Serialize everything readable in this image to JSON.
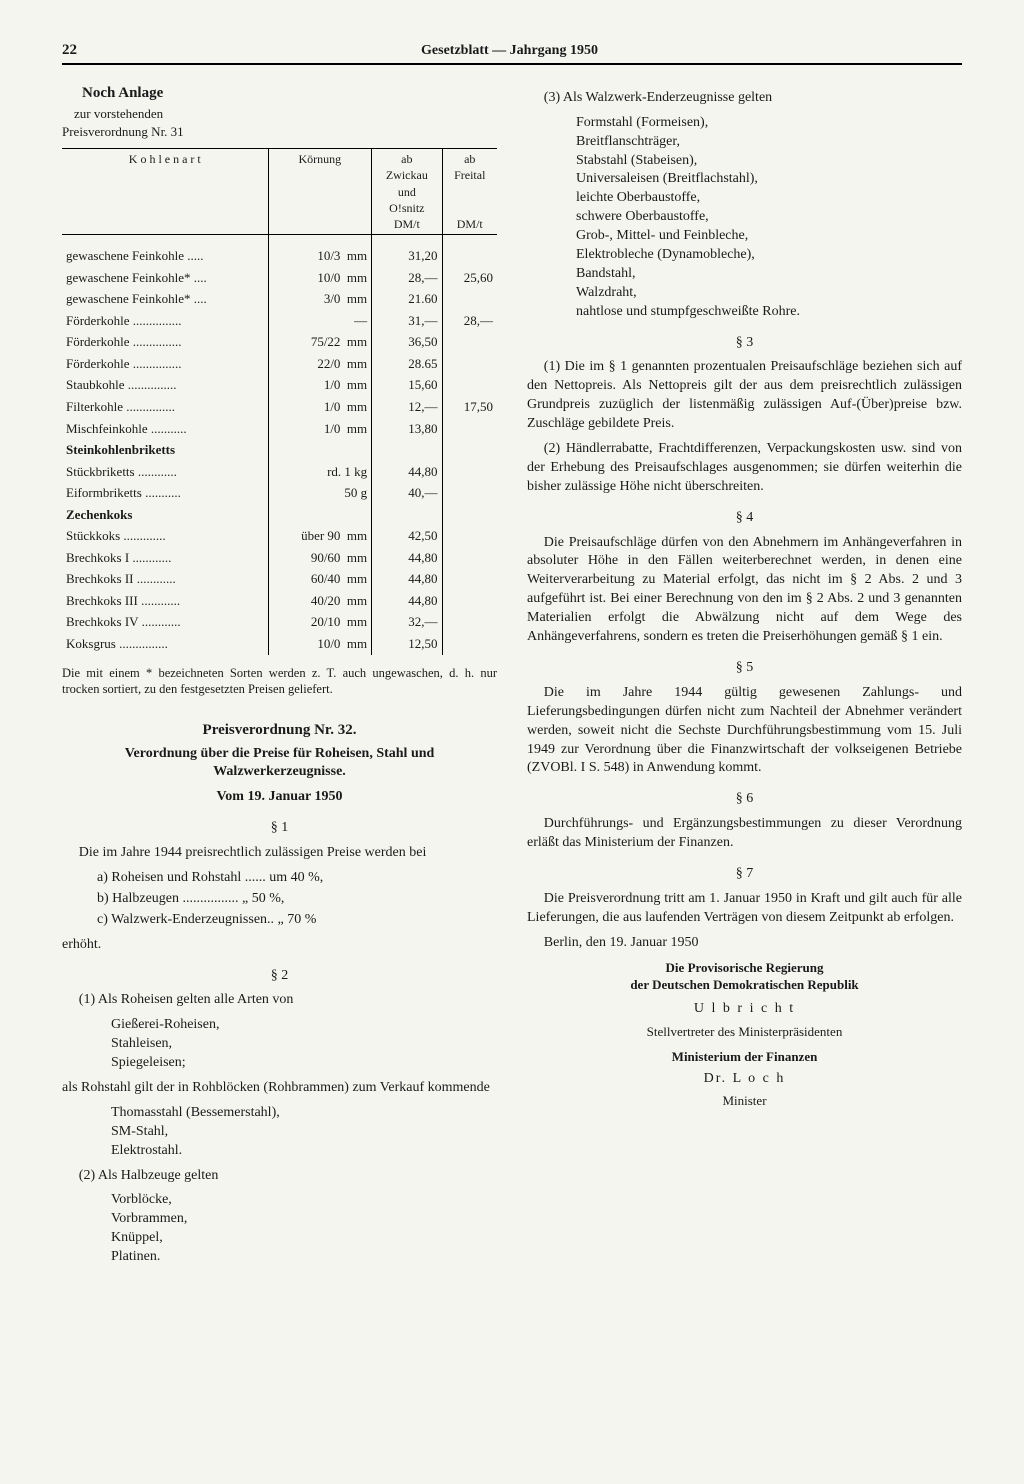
{
  "page_number": "22",
  "header": "Gesetzblatt — Jahrgang 1950",
  "anlage": {
    "title": "Noch Anlage",
    "sub1": "zur vorstehenden",
    "sub2": "Preisverordnung Nr. 31"
  },
  "table": {
    "head": {
      "c1": "K o h l e n a r t",
      "c2": "Körnung",
      "c3a": "ab",
      "c3b": "Zwickau",
      "c3c": "und",
      "c3d": "O!snitz",
      "c3e": "DM/t",
      "c4a": "ab",
      "c4b": "Freital",
      "c4e": "DM/t"
    },
    "rows": [
      {
        "name": "gewaschene Feinkohle .....",
        "korn": "10/3",
        "unit": "mm",
        "p1": "31,20",
        "p2": ""
      },
      {
        "name": "gewaschene Feinkohle* ....",
        "korn": "10/0",
        "unit": "mm",
        "p1": "28,—",
        "p2": "25,60"
      },
      {
        "name": "gewaschene Feinkohle* ....",
        "korn": "3/0",
        "unit": "mm",
        "p1": "21.60",
        "p2": ""
      },
      {
        "name": "Förderkohle ...............",
        "korn": "—",
        "unit": "",
        "p1": "31,—",
        "p2": "28,—"
      },
      {
        "name": "Förderkohle ...............",
        "korn": "75/22",
        "unit": "mm",
        "p1": "36,50",
        "p2": ""
      },
      {
        "name": "Förderkohle ...............",
        "korn": "22/0",
        "unit": "mm",
        "p1": "28.65",
        "p2": ""
      },
      {
        "name": "Staubkohle ...............",
        "korn": "1/0",
        "unit": "mm",
        "p1": "15,60",
        "p2": ""
      },
      {
        "name": "Filterkohle ...............",
        "korn": "1/0",
        "unit": "mm",
        "p1": "12,—",
        "p2": "17,50"
      },
      {
        "name": "Mischfeinkohle ...........",
        "korn": "1/0",
        "unit": "mm",
        "p1": "13,80",
        "p2": ""
      }
    ],
    "sub1": "Steinkohlenbriketts",
    "rows2": [
      {
        "name": "Stückbriketts ............",
        "korn": "rd. 1 kg",
        "unit": "",
        "p1": "44,80",
        "p2": ""
      },
      {
        "name": "Eiformbriketts ...........",
        "korn": "50 g",
        "unit": "",
        "p1": "40,—",
        "p2": ""
      }
    ],
    "sub2": "Zechenkoks",
    "rows3": [
      {
        "name": "Stückkoks .............",
        "korn": "über 90",
        "unit": "mm",
        "p1": "42,50",
        "p2": ""
      },
      {
        "name": "Brechkoks I ............",
        "korn": "90/60",
        "unit": "mm",
        "p1": "44,80",
        "p2": ""
      },
      {
        "name": "Brechkoks II ............",
        "korn": "60/40",
        "unit": "mm",
        "p1": "44,80",
        "p2": ""
      },
      {
        "name": "Brechkoks III ............",
        "korn": "40/20",
        "unit": "mm",
        "p1": "44,80",
        "p2": ""
      },
      {
        "name": "Brechkoks IV ............",
        "korn": "20/10",
        "unit": "mm",
        "p1": "32,—",
        "p2": ""
      },
      {
        "name": "Koksgrus ...............",
        "korn": "10/0",
        "unit": "mm",
        "p1": "12,50",
        "p2": ""
      }
    ],
    "footnote": "Die mit einem * bezeichneten Sorten werden z. T. auch ungewaschen, d. h. nur trocken sortiert, zu den festgesetzten Preisen geliefert."
  },
  "ord": {
    "title": "Preisverordnung Nr. 32.",
    "sub": "Verordnung über die Preise für Roheisen, Stahl und Walzwerkerzeugnisse.",
    "date": "Vom 19. Januar 1950",
    "s1": "§ 1",
    "p1": "Die im Jahre 1944 preisrechtlich zulässigen Preise werden bei",
    "p1a": "a) Roheisen und Rohstahl ...... um 40 %,",
    "p1b": "b) Halbzeugen ................ „ 50 %,",
    "p1c": "c) Walzwerk-Enderzeugnissen.. „ 70 %",
    "p1e": "erhöht.",
    "s2": "§ 2",
    "p2_1": "(1) Als Roheisen gelten alle Arten von",
    "p2_1a": "Gießerei-Roheisen,",
    "p2_1b": "Stahleisen,",
    "p2_1c": "Spiegeleisen;",
    "p2_r": "als Rohstahl gilt der in Rohblöcken (Rohbrammen) zum Verkauf kommende",
    "p2_ra": "Thomasstahl (Bessemerstahl),",
    "p2_rb": "SM-Stahl,",
    "p2_rc": "Elektrostahl.",
    "p2_2": "(2) Als Halbzeuge gelten",
    "p2_2a": "Vorblöcke,",
    "p2_2b": "Vorbrammen,",
    "p2_2c": "Knüppel,",
    "p2_2d": "Platinen."
  },
  "col2": {
    "p3": "(3) Als Walzwerk-Enderzeugnisse gelten",
    "p3_list": [
      "Formstahl (Formeisen),",
      "Breitflanschträger,",
      "Stabstahl (Stabeisen),",
      "Universaleisen (Breitflachstahl),",
      "leichte Oberbaustoffe,",
      "schwere Oberbaustoffe,",
      "Grob-, Mittel- und Feinbleche,",
      "Elektrobleche (Dynamobleche),",
      "Bandstahl,",
      "Walzdraht,",
      "nahtlose und stumpfgeschweißte Rohre."
    ],
    "s3": "§ 3",
    "p3_1": "(1) Die im § 1 genannten prozentualen Preisaufschläge beziehen sich auf den Nettopreis. Als Nettopreis gilt der aus dem preisrechtlich zulässigen Grundpreis zuzüglich der listenmäßig zulässigen Auf-(Über)preise bzw. Zuschläge gebildete Preis.",
    "p3_2": "(2) Händlerrabatte, Frachtdifferenzen, Verpackungskosten usw. sind von der Erhebung des Preisaufschlages ausgenommen; sie dürfen weiterhin die bisher zulässige Höhe nicht überschreiten.",
    "s4": "§ 4",
    "p4": "Die Preisaufschläge dürfen von den Abnehmern im Anhängeverfahren in absoluter Höhe in den Fällen weiterberechnet werden, in denen eine Weiterverarbeitung zu Material erfolgt, das nicht im § 2 Abs. 2 und 3 aufgeführt ist. Bei einer Berechnung von den im § 2 Abs. 2 und 3 genannten Materialien erfolgt die Abwälzung nicht auf dem Wege des Anhängeverfahrens, sondern es treten die Preiserhöhungen gemäß § 1 ein.",
    "s5": "§ 5",
    "p5": "Die im Jahre 1944 gültig gewesenen Zahlungs- und Lieferungsbedingungen dürfen nicht zum Nachteil der Abnehmer verändert werden, soweit nicht die Sechste Durchführungsbestimmung vom 15. Juli 1949 zur Verordnung über die Finanzwirtschaft der volkseigenen Betriebe (ZVOBl. I S. 548) in Anwendung kommt.",
    "s6": "§ 6",
    "p6": "Durchführungs- und Ergänzungsbestimmungen zu dieser Verordnung erläßt das Ministerium der Finanzen.",
    "s7": "§ 7",
    "p7": "Die Preisverordnung tritt am 1. Januar 1950 in Kraft und gilt auch für alle Lieferungen, die aus laufenden Verträgen von diesem Zeitpunkt ab erfolgen.",
    "place": "Berlin, den 19. Januar 1950",
    "sig1": "Die Provisorische Regierung",
    "sig2": "der Deutschen Demokratischen Republik",
    "sig3": "U l b r i c h t",
    "sig4": "Stellvertreter des Ministerpräsidenten",
    "sig5": "Ministerium der Finanzen",
    "sig6": "Dr. L o c h",
    "sig7": "Minister"
  }
}
